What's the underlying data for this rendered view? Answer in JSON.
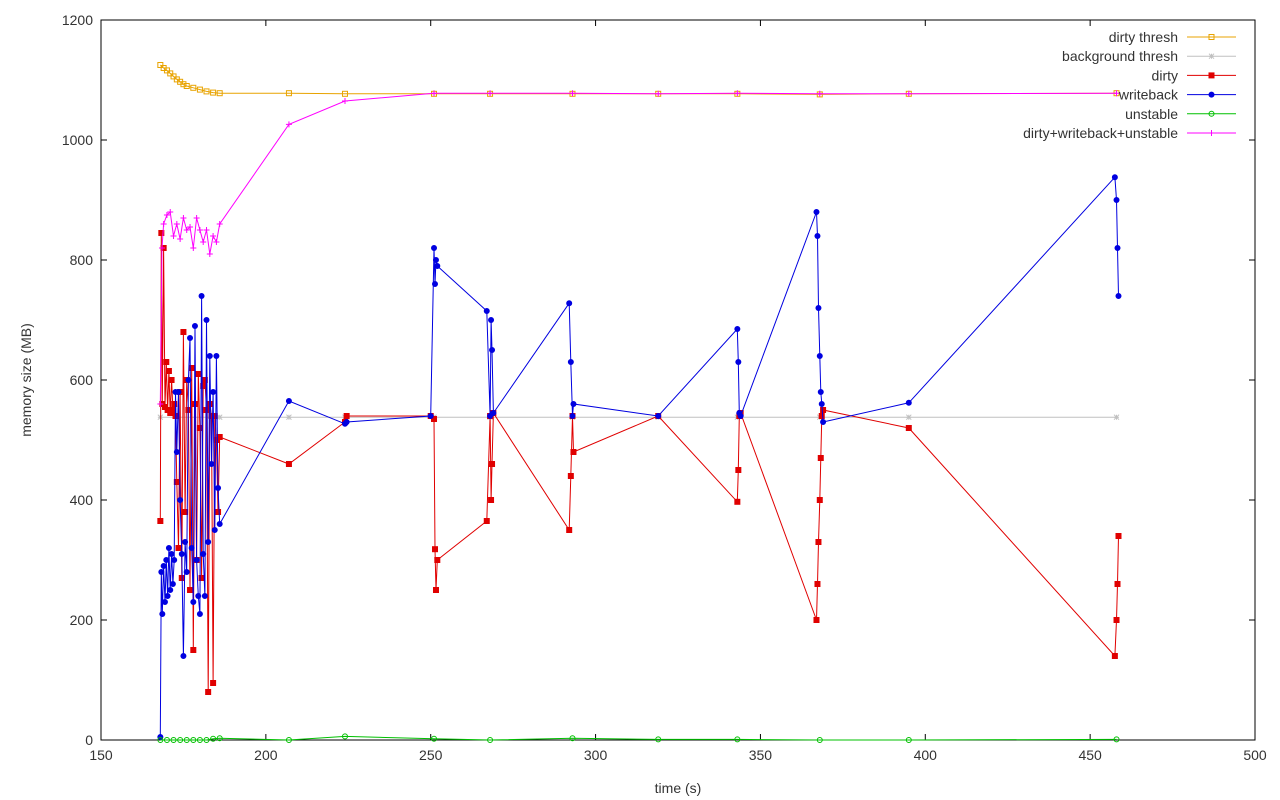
{
  "chart_data": {
    "type": "line",
    "xlabel": "time (s)",
    "ylabel": "memory size (MB)",
    "xlim": [
      150,
      500
    ],
    "ylim": [
      0,
      1200
    ],
    "xticks": [
      150,
      200,
      250,
      300,
      350,
      400,
      450,
      500
    ],
    "yticks": [
      0,
      200,
      400,
      600,
      800,
      1000,
      1200
    ],
    "grid": false,
    "legend_position": "top-right",
    "series": [
      {
        "name": "dirty thresh",
        "color": "#e8a300",
        "marker": "square",
        "x": [
          168,
          169,
          170,
          171,
          172,
          173,
          174,
          175,
          176,
          178,
          180,
          182,
          184,
          186,
          207,
          224,
          251,
          268,
          293,
          319,
          343,
          368,
          395,
          458
        ],
        "y": [
          1125,
          1120,
          1116,
          1111,
          1106,
          1101,
          1097,
          1093,
          1090,
          1087,
          1084,
          1081,
          1079,
          1078,
          1078,
          1077,
          1077,
          1077,
          1077,
          1077,
          1077,
          1076,
          1077,
          1078
        ]
      },
      {
        "name": "background thresh",
        "color": "#c0c0c0",
        "marker": "star",
        "x": [
          168,
          186,
          207,
          224,
          251,
          268,
          293,
          319,
          343,
          368,
          395,
          458
        ],
        "y": [
          538,
          538,
          538,
          538,
          538,
          538,
          538,
          538,
          538,
          538,
          538,
          538
        ]
      },
      {
        "name": "dirty",
        "color": "#e00000",
        "marker": "filled-square",
        "x": [
          168,
          168.3,
          168.6,
          169,
          169.4,
          169.8,
          170.2,
          170.6,
          171,
          171.4,
          171.8,
          172.2,
          172.6,
          173,
          173.5,
          174,
          174.5,
          175,
          175.5,
          176,
          176.5,
          177,
          177.5,
          178,
          178.5,
          179,
          179.5,
          180,
          180.5,
          181,
          181.5,
          182,
          182.5,
          183,
          183.5,
          184,
          184.5,
          185,
          185.5,
          186,
          207,
          224,
          224.5,
          250,
          251,
          251.3,
          251.6,
          252,
          267,
          268,
          268.3,
          268.6,
          269,
          292,
          292.5,
          293,
          293.3,
          319,
          343,
          343.3,
          343.6,
          344,
          367,
          367.3,
          367.6,
          368,
          368.3,
          368.6,
          369,
          395,
          457.5,
          458,
          458.3,
          458.6
        ],
        "y": [
          365,
          845,
          560,
          820,
          555,
          630,
          550,
          615,
          545,
          600,
          550,
          560,
          540,
          430,
          320,
          580,
          270,
          680,
          380,
          600,
          550,
          250,
          620,
          150,
          560,
          300,
          610,
          520,
          270,
          590,
          600,
          550,
          80,
          560,
          540,
          95,
          540,
          500,
          380,
          505,
          460,
          530,
          540,
          540,
          535,
          318,
          250,
          300,
          365,
          540,
          400,
          460,
          545,
          350,
          440,
          540,
          480,
          540,
          397,
          450,
          540,
          545,
          200,
          260,
          330,
          400,
          470,
          540,
          550,
          520,
          140,
          200,
          260,
          340
        ]
      },
      {
        "name": "writeback",
        "color": "#0000e0",
        "marker": "filled-circle",
        "x": [
          168,
          168.3,
          168.6,
          169,
          169.4,
          169.8,
          170.2,
          170.6,
          171,
          171.4,
          171.8,
          172.2,
          172.6,
          173,
          173.5,
          174,
          174.5,
          175,
          175.5,
          176,
          176.5,
          177,
          177.5,
          178,
          178.5,
          179,
          179.5,
          180,
          180.5,
          181,
          181.5,
          182,
          182.5,
          183,
          183.5,
          184,
          184.5,
          185,
          185.5,
          186,
          207,
          224,
          224.5,
          250,
          251,
          251.3,
          251.6,
          252,
          267,
          268,
          268.3,
          268.6,
          269,
          292,
          292.5,
          293,
          293.3,
          319,
          343,
          343.3,
          343.6,
          344,
          367,
          367.3,
          367.6,
          368,
          368.3,
          368.6,
          369,
          395,
          457.5,
          458,
          458.3,
          458.6
        ],
        "y": [
          5,
          280,
          210,
          290,
          230,
          300,
          240,
          320,
          250,
          310,
          260,
          300,
          580,
          480,
          580,
          400,
          310,
          140,
          330,
          280,
          600,
          670,
          320,
          230,
          690,
          300,
          240,
          210,
          740,
          310,
          240,
          700,
          330,
          640,
          460,
          580,
          350,
          640,
          420,
          360,
          565,
          527,
          530,
          540,
          820,
          760,
          800,
          790,
          715,
          540,
          700,
          650,
          545,
          728,
          630,
          540,
          560,
          540,
          685,
          630,
          545,
          540,
          880,
          840,
          720,
          640,
          580,
          560,
          530,
          562,
          938,
          900,
          820,
          740
        ]
      },
      {
        "name": "unstable",
        "color": "#00c000",
        "marker": "circle",
        "x": [
          168,
          170,
          172,
          174,
          176,
          178,
          180,
          182,
          184,
          186,
          207,
          224,
          251,
          268,
          293,
          319,
          343,
          368,
          395,
          458
        ],
        "y": [
          0,
          0,
          0,
          0,
          0,
          0,
          0,
          0,
          2,
          3,
          0,
          6,
          2,
          0,
          3,
          1,
          1,
          0,
          0,
          1
        ]
      },
      {
        "name": "dirty+writeback+unstable",
        "color": "#ff00ff",
        "marker": "plus",
        "x": [
          168,
          168.5,
          169,
          170,
          171,
          172,
          173,
          174,
          175,
          176,
          177,
          178,
          179,
          180,
          181,
          182,
          183,
          184,
          185,
          186,
          207,
          224,
          251,
          268,
          293,
          319,
          343,
          368,
          395,
          458
        ],
        "y": [
          560,
          820,
          860,
          875,
          880,
          840,
          860,
          835,
          870,
          850,
          855,
          820,
          870,
          850,
          830,
          850,
          810,
          840,
          830,
          860,
          1026,
          1065,
          1078,
          1078,
          1078,
          1077,
          1078,
          1077,
          1077,
          1078
        ]
      }
    ]
  }
}
